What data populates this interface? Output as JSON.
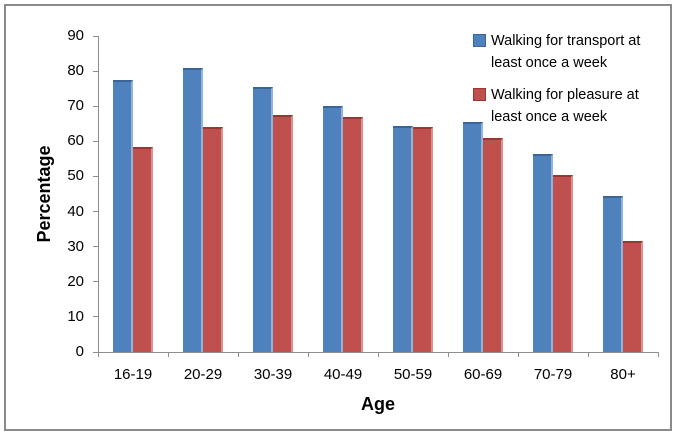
{
  "window": {
    "background": "#FFFFFF",
    "frame_border_color": "#8A8A8A"
  },
  "chart_data": {
    "type": "bar",
    "title": "",
    "xlabel": "Age",
    "ylabel": "Percentage",
    "categories": [
      "16-19",
      "20-29",
      "30-39",
      "40-49",
      "50-59",
      "60-69",
      "70-79",
      "80+"
    ],
    "series": [
      {
        "name": "Walking for transport at least once a week",
        "color": "#4F81BD",
        "values": [
          77.5,
          81,
          75.5,
          70,
          64.5,
          65.5,
          56.5,
          44.5
        ]
      },
      {
        "name": "Walking for pleasure at least once a week",
        "color": "#C0504D",
        "values": [
          58.5,
          64,
          67.5,
          67,
          64,
          61,
          50.5,
          31.5
        ]
      }
    ],
    "ylim": [
      0,
      90
    ],
    "ytick_step": 10,
    "grid": false,
    "legend_position": "top-right",
    "axis_color": "#8E8E8E",
    "text_color": "#000000"
  }
}
